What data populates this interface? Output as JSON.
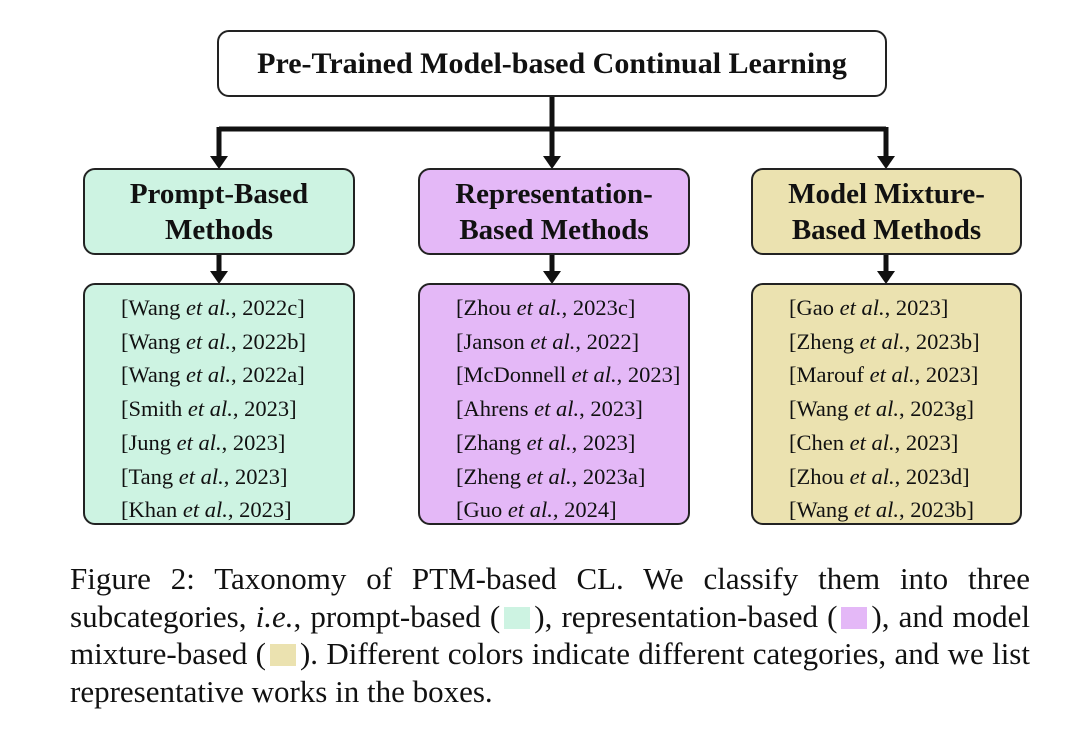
{
  "root": {
    "title": "Pre-Trained Model-based Continual Learning"
  },
  "categories": [
    {
      "line1": "Prompt-Based",
      "line2": "Methods",
      "color": "#cdf3e2",
      "refs": [
        {
          "pre": "[Wang ",
          "ital": "et al.",
          "post": ", 2022c]"
        },
        {
          "pre": "[Wang ",
          "ital": "et al.",
          "post": ", 2022b]"
        },
        {
          "pre": "[Wang ",
          "ital": "et al.",
          "post": ", 2022a]"
        },
        {
          "pre": "[Smith ",
          "ital": "et al.",
          "post": ", 2023]"
        },
        {
          "pre": "[Jung ",
          "ital": "et al.",
          "post": ", 2023]"
        },
        {
          "pre": "[Tang ",
          "ital": "et al.",
          "post": ", 2023]"
        },
        {
          "pre": "[Khan ",
          "ital": "et al.",
          "post": ", 2023]"
        }
      ]
    },
    {
      "line1": "Representation-",
      "line2": "Based Methods",
      "color": "#e4b8f7",
      "refs": [
        {
          "pre": "[Zhou ",
          "ital": "et al.",
          "post": ", 2023c]"
        },
        {
          "pre": "[Janson ",
          "ital": "et al.",
          "post": ", 2022]"
        },
        {
          "pre": "[McDonnell ",
          "ital": "et al.",
          "post": ", 2023]"
        },
        {
          "pre": "[Ahrens ",
          "ital": "et al.",
          "post": ", 2023]"
        },
        {
          "pre": "[Zhang ",
          "ital": "et al.",
          "post": ", 2023]"
        },
        {
          "pre": "[Zheng ",
          "ital": "et al.",
          "post": ", 2023a]"
        },
        {
          "pre": "[Guo ",
          "ital": "et al.",
          "post": ", 2024]"
        }
      ]
    },
    {
      "line1": "Model Mixture-",
      "line2": "Based Methods",
      "color": "#ebe2b0",
      "refs": [
        {
          "pre": "[Gao ",
          "ital": "et al.",
          "post": ", 2023]"
        },
        {
          "pre": "[Zheng ",
          "ital": "et al.",
          "post": ", 2023b]"
        },
        {
          "pre": "[Marouf ",
          "ital": "et al.",
          "post": ", 2023]"
        },
        {
          "pre": "[Wang ",
          "ital": "et al.",
          "post": ", 2023g]"
        },
        {
          "pre": "[Chen ",
          "ital": "et al.",
          "post": ", 2023]"
        },
        {
          "pre": "[Zhou ",
          "ital": "et al.",
          "post": ", 2023d]"
        },
        {
          "pre": "[Wang ",
          "ital": "et al.",
          "post": ", 2023b]"
        }
      ]
    }
  ],
  "caption": {
    "p1": "Figure 2: Taxonomy of PTM-based CL. We classify them into three subcategories, ",
    "p2": "i.e.",
    "p3": ", prompt-based (",
    "p4": "), representation-based (",
    "p5": "), and model mixture-based (",
    "p6": "). Different colors indicate different categories, and we list representative works in the boxes."
  }
}
